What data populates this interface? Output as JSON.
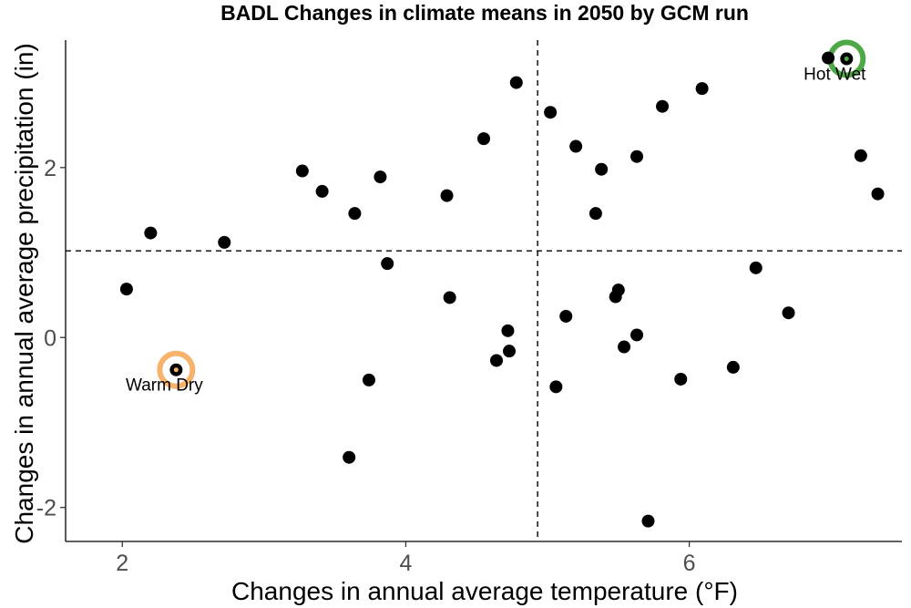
{
  "chart_data": {
    "type": "scatter",
    "title": "BADL Changes in climate means in 2050 by GCM run",
    "xlabel": "Changes in annual average temperature (°F)",
    "ylabel": "Changes in annual average precipitation (in)",
    "xlim": [
      1.6,
      7.5
    ],
    "ylim": [
      -2.4,
      3.5
    ],
    "xticks": [
      2,
      4,
      6
    ],
    "yticks": [
      -2,
      0,
      2
    ],
    "xtick_labels": [
      "2",
      "4",
      "6"
    ],
    "ytick_labels": [
      "-2",
      "0",
      "2"
    ],
    "grid": false,
    "reference_lines": {
      "x": 4.93,
      "y": 1.02
    },
    "point_color": "#000000",
    "points": [
      {
        "x": 2.03,
        "y": 0.57
      },
      {
        "x": 2.2,
        "y": 1.23
      },
      {
        "x": 2.38,
        "y": -0.38
      },
      {
        "x": 2.72,
        "y": 1.12
      },
      {
        "x": 3.27,
        "y": 1.96
      },
      {
        "x": 3.41,
        "y": 1.72
      },
      {
        "x": 3.6,
        "y": -1.41
      },
      {
        "x": 3.64,
        "y": 1.46
      },
      {
        "x": 3.74,
        "y": -0.5
      },
      {
        "x": 3.82,
        "y": 1.89
      },
      {
        "x": 3.87,
        "y": 0.87
      },
      {
        "x": 4.29,
        "y": 1.67
      },
      {
        "x": 4.31,
        "y": 0.47
      },
      {
        "x": 4.55,
        "y": 2.34
      },
      {
        "x": 4.64,
        "y": -0.27
      },
      {
        "x": 4.72,
        "y": 0.08
      },
      {
        "x": 4.73,
        "y": -0.16
      },
      {
        "x": 4.78,
        "y": 3.0
      },
      {
        "x": 5.02,
        "y": 2.65
      },
      {
        "x": 5.06,
        "y": -0.58
      },
      {
        "x": 5.13,
        "y": 0.25
      },
      {
        "x": 5.2,
        "y": 2.25
      },
      {
        "x": 5.34,
        "y": 1.46
      },
      {
        "x": 5.38,
        "y": 1.98
      },
      {
        "x": 5.48,
        "y": 0.48
      },
      {
        "x": 5.5,
        "y": 0.56
      },
      {
        "x": 5.54,
        "y": -0.11
      },
      {
        "x": 5.63,
        "y": 0.03
      },
      {
        "x": 5.63,
        "y": 2.13
      },
      {
        "x": 5.71,
        "y": -2.16
      },
      {
        "x": 5.81,
        "y": 2.72
      },
      {
        "x": 5.94,
        "y": -0.49
      },
      {
        "x": 6.09,
        "y": 2.93
      },
      {
        "x": 6.31,
        "y": -0.35
      },
      {
        "x": 6.47,
        "y": 0.82
      },
      {
        "x": 6.7,
        "y": 0.29
      },
      {
        "x": 6.98,
        "y": 3.29
      },
      {
        "x": 7.11,
        "y": 3.28
      },
      {
        "x": 7.21,
        "y": 2.14
      },
      {
        "x": 7.33,
        "y": 1.69
      }
    ],
    "highlights": [
      {
        "label": "Warm Dry",
        "x": 2.38,
        "y": -0.38,
        "color": "#F7B26B"
      },
      {
        "label": "Hot Wet",
        "x": 7.11,
        "y": 3.28,
        "color": "#4EA845"
      }
    ]
  }
}
